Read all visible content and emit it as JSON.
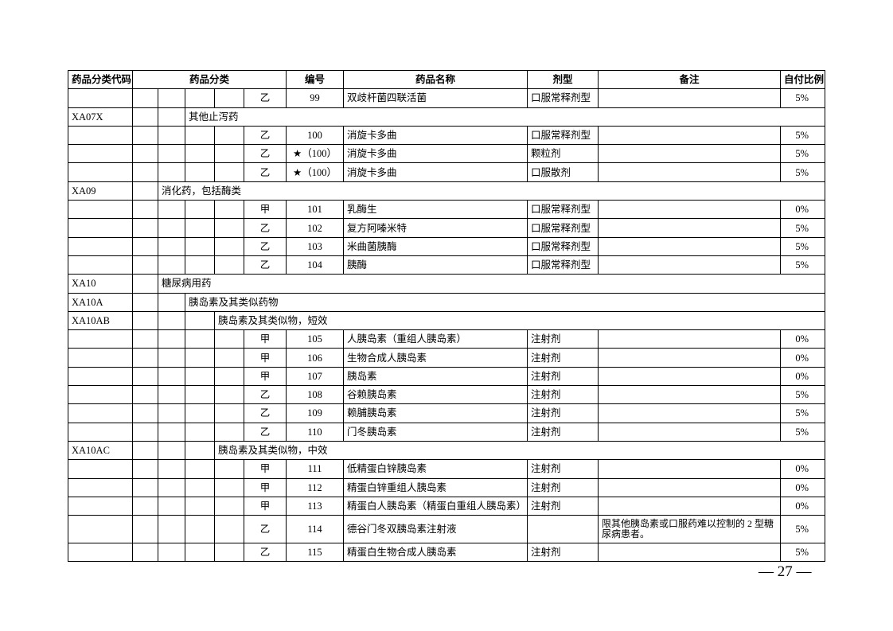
{
  "table": {
    "headers": [
      "药品分类代码",
      "药品分类",
      "编号",
      "药品名称",
      "剂型",
      "备注",
      "自付比例"
    ],
    "rows": [
      {
        "grade": "乙",
        "no": "99",
        "name": "双歧杆菌四联活菌",
        "form": "口服常释剂型",
        "ratio": "5%"
      },
      {
        "code": "XA07X",
        "name": "其他止泻药"
      },
      {
        "grade": "乙",
        "no": "100",
        "name": "消旋卡多曲",
        "form": "口服常释剂型",
        "ratio": "5%"
      },
      {
        "grade": "乙",
        "no": "★（100）",
        "name": "消旋卡多曲",
        "form": "颗粒剂",
        "ratio": "5%"
      },
      {
        "grade": "乙",
        "no": "★（100）",
        "name": "消旋卡多曲",
        "form": "口服散剂",
        "ratio": "5%"
      },
      {
        "code": "XA09",
        "name": "消化药，包括酶类"
      },
      {
        "grade": "甲",
        "no": "101",
        "name": "乳酶生",
        "form": "口服常释剂型",
        "ratio": "0%"
      },
      {
        "grade": "乙",
        "no": "102",
        "name": "复方阿嗪米特",
        "form": "口服常释剂型",
        "ratio": "5%"
      },
      {
        "grade": "乙",
        "no": "103",
        "name": "米曲菌胰酶",
        "form": "口服常释剂型",
        "ratio": "5%"
      },
      {
        "grade": "乙",
        "no": "104",
        "name": "胰酶",
        "form": "口服常释剂型",
        "ratio": "5%"
      },
      {
        "code": "XA10",
        "name": "糖尿病用药"
      },
      {
        "code": "XA10A",
        "name": "胰岛素及其类似药物"
      },
      {
        "code": "XA10AB",
        "name": "胰岛素及其类似物，短效"
      },
      {
        "grade": "甲",
        "no": "105",
        "name": "人胰岛素（重组人胰岛素）",
        "form": "注射剂",
        "ratio": "0%"
      },
      {
        "grade": "甲",
        "no": "106",
        "name": "生物合成人胰岛素",
        "form": "注射剂",
        "ratio": "0%"
      },
      {
        "grade": "甲",
        "no": "107",
        "name": "胰岛素",
        "form": "注射剂",
        "ratio": "0%"
      },
      {
        "grade": "乙",
        "no": "108",
        "name": "谷赖胰岛素",
        "form": "注射剂",
        "ratio": "5%"
      },
      {
        "grade": "乙",
        "no": "109",
        "name": "赖脯胰岛素",
        "form": "注射剂",
        "ratio": "5%"
      },
      {
        "grade": "乙",
        "no": "110",
        "name": "门冬胰岛素",
        "form": "注射剂",
        "ratio": "5%"
      },
      {
        "code": "XA10AC",
        "name": "胰岛素及其类似物，中效"
      },
      {
        "grade": "甲",
        "no": "111",
        "name": "低精蛋白锌胰岛素",
        "form": "注射剂",
        "ratio": "0%"
      },
      {
        "grade": "甲",
        "no": "112",
        "name": "精蛋白锌重组人胰岛素",
        "form": "注射剂",
        "ratio": "0%"
      },
      {
        "grade": "甲",
        "no": "113",
        "name": "精蛋白人胰岛素（精蛋白重组人胰岛素）",
        "form": "注射剂",
        "ratio": "0%"
      },
      {
        "grade": "乙",
        "no": "114",
        "name": "德谷门冬双胰岛素注射液",
        "note": "限其他胰岛素或口服药难以控制的 2 型糖尿病患者。",
        "ratio": "5%"
      },
      {
        "grade": "乙",
        "no": "115",
        "name": "精蛋白生物合成人胰岛素",
        "form": "注射剂",
        "ratio": "5%"
      }
    ]
  },
  "footer": {
    "page": "— 27 —"
  }
}
